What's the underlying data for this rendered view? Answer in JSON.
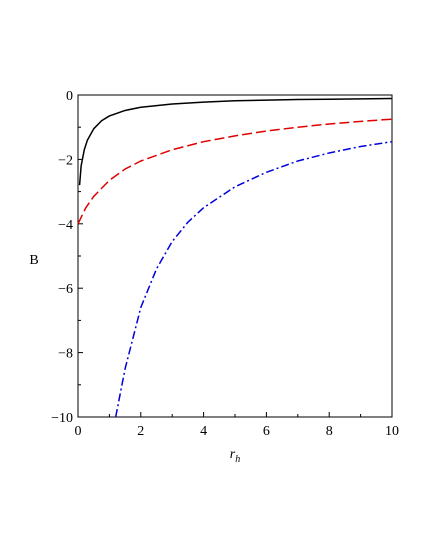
{
  "chart_data": {
    "type": "line",
    "title": "",
    "xlabel": "r",
    "xlabel_subscript": "h",
    "ylabel": "B",
    "xlim": [
      0,
      10
    ],
    "ylim": [
      -10,
      0
    ],
    "x_ticks": [
      0,
      2,
      4,
      6,
      8,
      10
    ],
    "x_tick_labels": [
      "0",
      "2",
      "4",
      "6",
      "8",
      "10"
    ],
    "y_ticks": [
      0,
      -2,
      -4,
      -6,
      -8,
      -10
    ],
    "y_tick_labels": [
      "0",
      "−2",
      "−4",
      "−6",
      "−8",
      "−10"
    ],
    "grid": false,
    "legend": "none",
    "series": [
      {
        "style": "solid",
        "color": "#000000",
        "x": [
          0.05,
          0.1,
          0.2,
          0.3,
          0.5,
          0.75,
          1,
          1.5,
          2,
          3,
          4,
          5,
          6,
          7,
          8,
          9,
          10
        ],
        "y": [
          -2.8,
          -2.2,
          -1.7,
          -1.4,
          -1.05,
          -0.8,
          -0.65,
          -0.48,
          -0.38,
          -0.28,
          -0.22,
          -0.18,
          -0.16,
          -0.14,
          -0.13,
          -0.12,
          -0.11
        ]
      },
      {
        "style": "dash",
        "color": "#e00000",
        "x": [
          0,
          0.25,
          0.5,
          0.75,
          1,
          1.5,
          2,
          3,
          4,
          5,
          6,
          7,
          8,
          9,
          10
        ],
        "y": [
          -4.0,
          -3.5,
          -3.15,
          -2.9,
          -2.65,
          -2.3,
          -2.05,
          -1.7,
          -1.45,
          -1.27,
          -1.12,
          -1.0,
          -0.9,
          -0.82,
          -0.75
        ]
      },
      {
        "style": "dashdot",
        "color": "#0000dd",
        "x": [
          1.2,
          1.5,
          2,
          2.5,
          3,
          3.5,
          4,
          5,
          6,
          7,
          8,
          9,
          10
        ],
        "y": [
          -10.0,
          -8.5,
          -6.6,
          -5.4,
          -4.55,
          -3.95,
          -3.5,
          -2.85,
          -2.4,
          -2.05,
          -1.8,
          -1.6,
          -1.45
        ]
      }
    ]
  }
}
